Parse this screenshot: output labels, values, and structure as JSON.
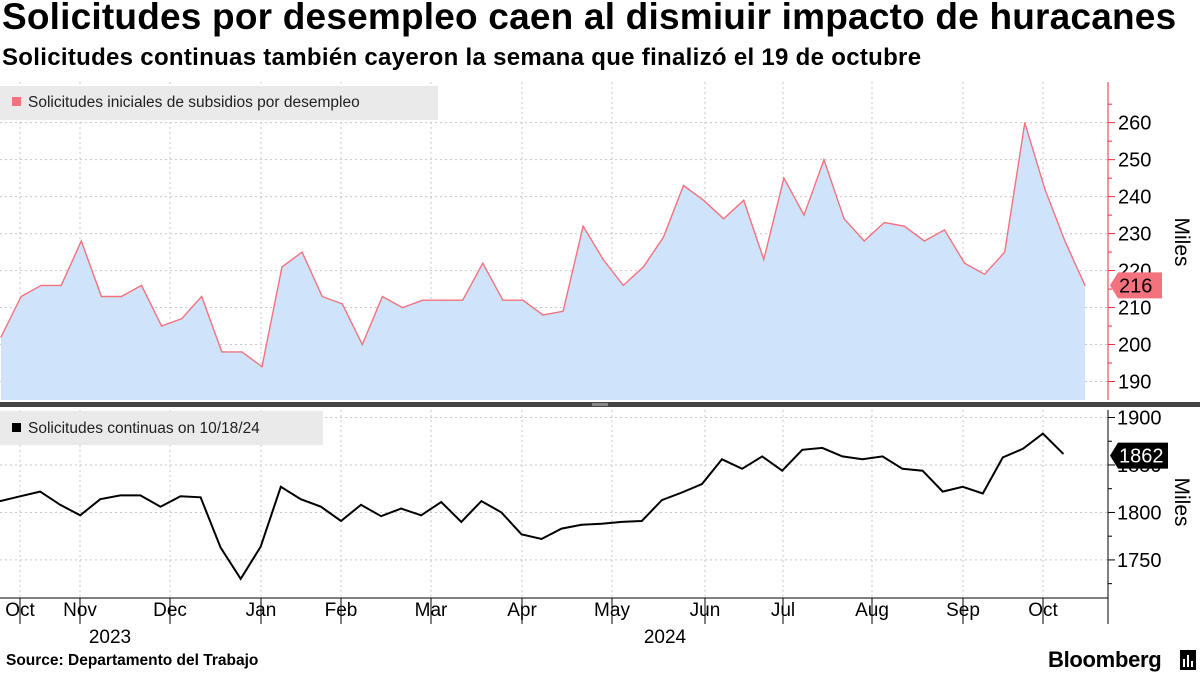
{
  "title": "Solicitudes por desempleo caen al dismiuir impacto de huracanes",
  "subtitle": "Solicitudes continuas también cayeron la semana que finalizó el 19 de octubre",
  "source": "Source:  Departamento del Trabajo",
  "brand": "Bloomberg",
  "colors": {
    "initial_line": "#f4727d",
    "initial_fill": "#cfe3fb",
    "initial_badge": "#f4727d",
    "continuing_line": "#000000",
    "axis": "#ee2b3d",
    "axis_bottom": "#000000"
  },
  "chart_data": [
    {
      "type": "area",
      "legend": "Solicitudes iniciales de subsidios por desempleo",
      "ylabel": "Miles",
      "ylim": [
        185,
        271
      ],
      "yticks": [
        190,
        200,
        210,
        220,
        230,
        240,
        250,
        260
      ],
      "last_value_label": "216",
      "grid": true,
      "legend_position": "top-left",
      "series": [
        {
          "name": "Solicitudes iniciales de subsidios por desempleo",
          "values": [
            202,
            213,
            216,
            216,
            228,
            213,
            213,
            216,
            205,
            207,
            213,
            198,
            198,
            194,
            221,
            225,
            213,
            211,
            200,
            213,
            210,
            212,
            212,
            212,
            222,
            212,
            212,
            208,
            209,
            232,
            223,
            216,
            221,
            229,
            243,
            239,
            234,
            239,
            223,
            245,
            235,
            250,
            234,
            228,
            233,
            232,
            228,
            231,
            222,
            219,
            225,
            260,
            242,
            228,
            216
          ]
        }
      ]
    },
    {
      "type": "line",
      "legend": "Solicitudes continuas on 10/18/24",
      "ylabel": "Miles",
      "ylim": [
        1712,
        1910
      ],
      "yticks": [
        1750,
        1800,
        1850,
        1900
      ],
      "last_value_label": "1862",
      "grid": true,
      "legend_position": "top-left",
      "series": [
        {
          "name": "Solicitudes continuas",
          "values": [
            1812,
            1817,
            1822,
            1808,
            1797,
            1814,
            1818,
            1818,
            1806,
            1817,
            1816,
            1763,
            1730,
            1764,
            1827,
            1814,
            1806,
            1791,
            1808,
            1796,
            1804,
            1797,
            1811,
            1790,
            1812,
            1800,
            1777,
            1772,
            1783,
            1787,
            1788,
            1790,
            1791,
            1813,
            1821,
            1830,
            1856,
            1846,
            1859,
            1844,
            1866,
            1868,
            1859,
            1856,
            1859,
            1846,
            1844,
            1822,
            1827,
            1820,
            1858,
            1867,
            1883,
            1862
          ]
        }
      ]
    }
  ],
  "x_axis": {
    "months": [
      "Oct",
      "Nov",
      "Dec",
      "Jan",
      "Feb",
      "Mar",
      "Apr",
      "May",
      "Jun",
      "Jul",
      "Aug",
      "Sep",
      "Oct"
    ],
    "years": [
      "2023",
      "2024"
    ]
  }
}
